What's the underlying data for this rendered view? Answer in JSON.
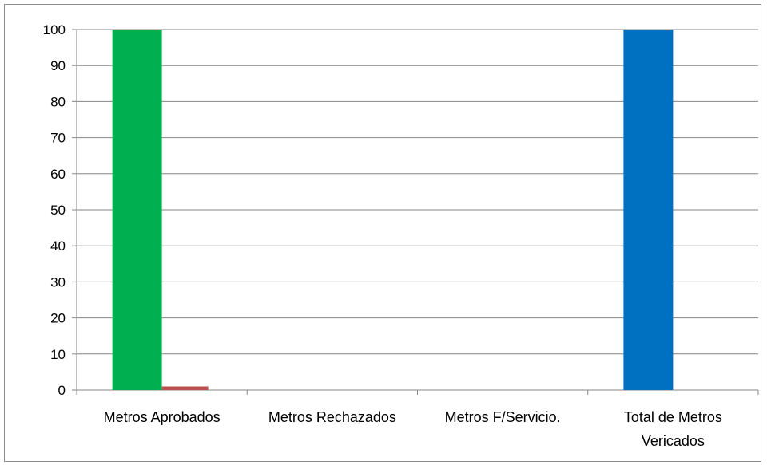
{
  "chart_data": {
    "type": "bar",
    "categories": [
      "Metros Aprobados",
      "Metros Rechazados",
      "Metros F/Servicio.",
      "Total de Metros Vericados"
    ],
    "category_lines": [
      [
        "Metros Aprobados"
      ],
      [
        "Metros Rechazados"
      ],
      [
        "Metros F/Servicio."
      ],
      [
        "Total de Metros",
        "Vericados"
      ]
    ],
    "series": [
      {
        "values": [
          100,
          0,
          0,
          100
        ],
        "colors": [
          "#00B050",
          "#00B050",
          "#00B050",
          "#0070C0"
        ]
      },
      {
        "values": [
          1,
          0,
          0,
          0
        ],
        "color": "#C0504D"
      }
    ],
    "ylim": [
      0,
      100
    ],
    "yticks": [
      0,
      10,
      20,
      30,
      40,
      50,
      60,
      70,
      80,
      90,
      100
    ],
    "grid": true,
    "gridline_color": "#868686",
    "xlabel": "",
    "ylabel": "",
    "title": ""
  }
}
